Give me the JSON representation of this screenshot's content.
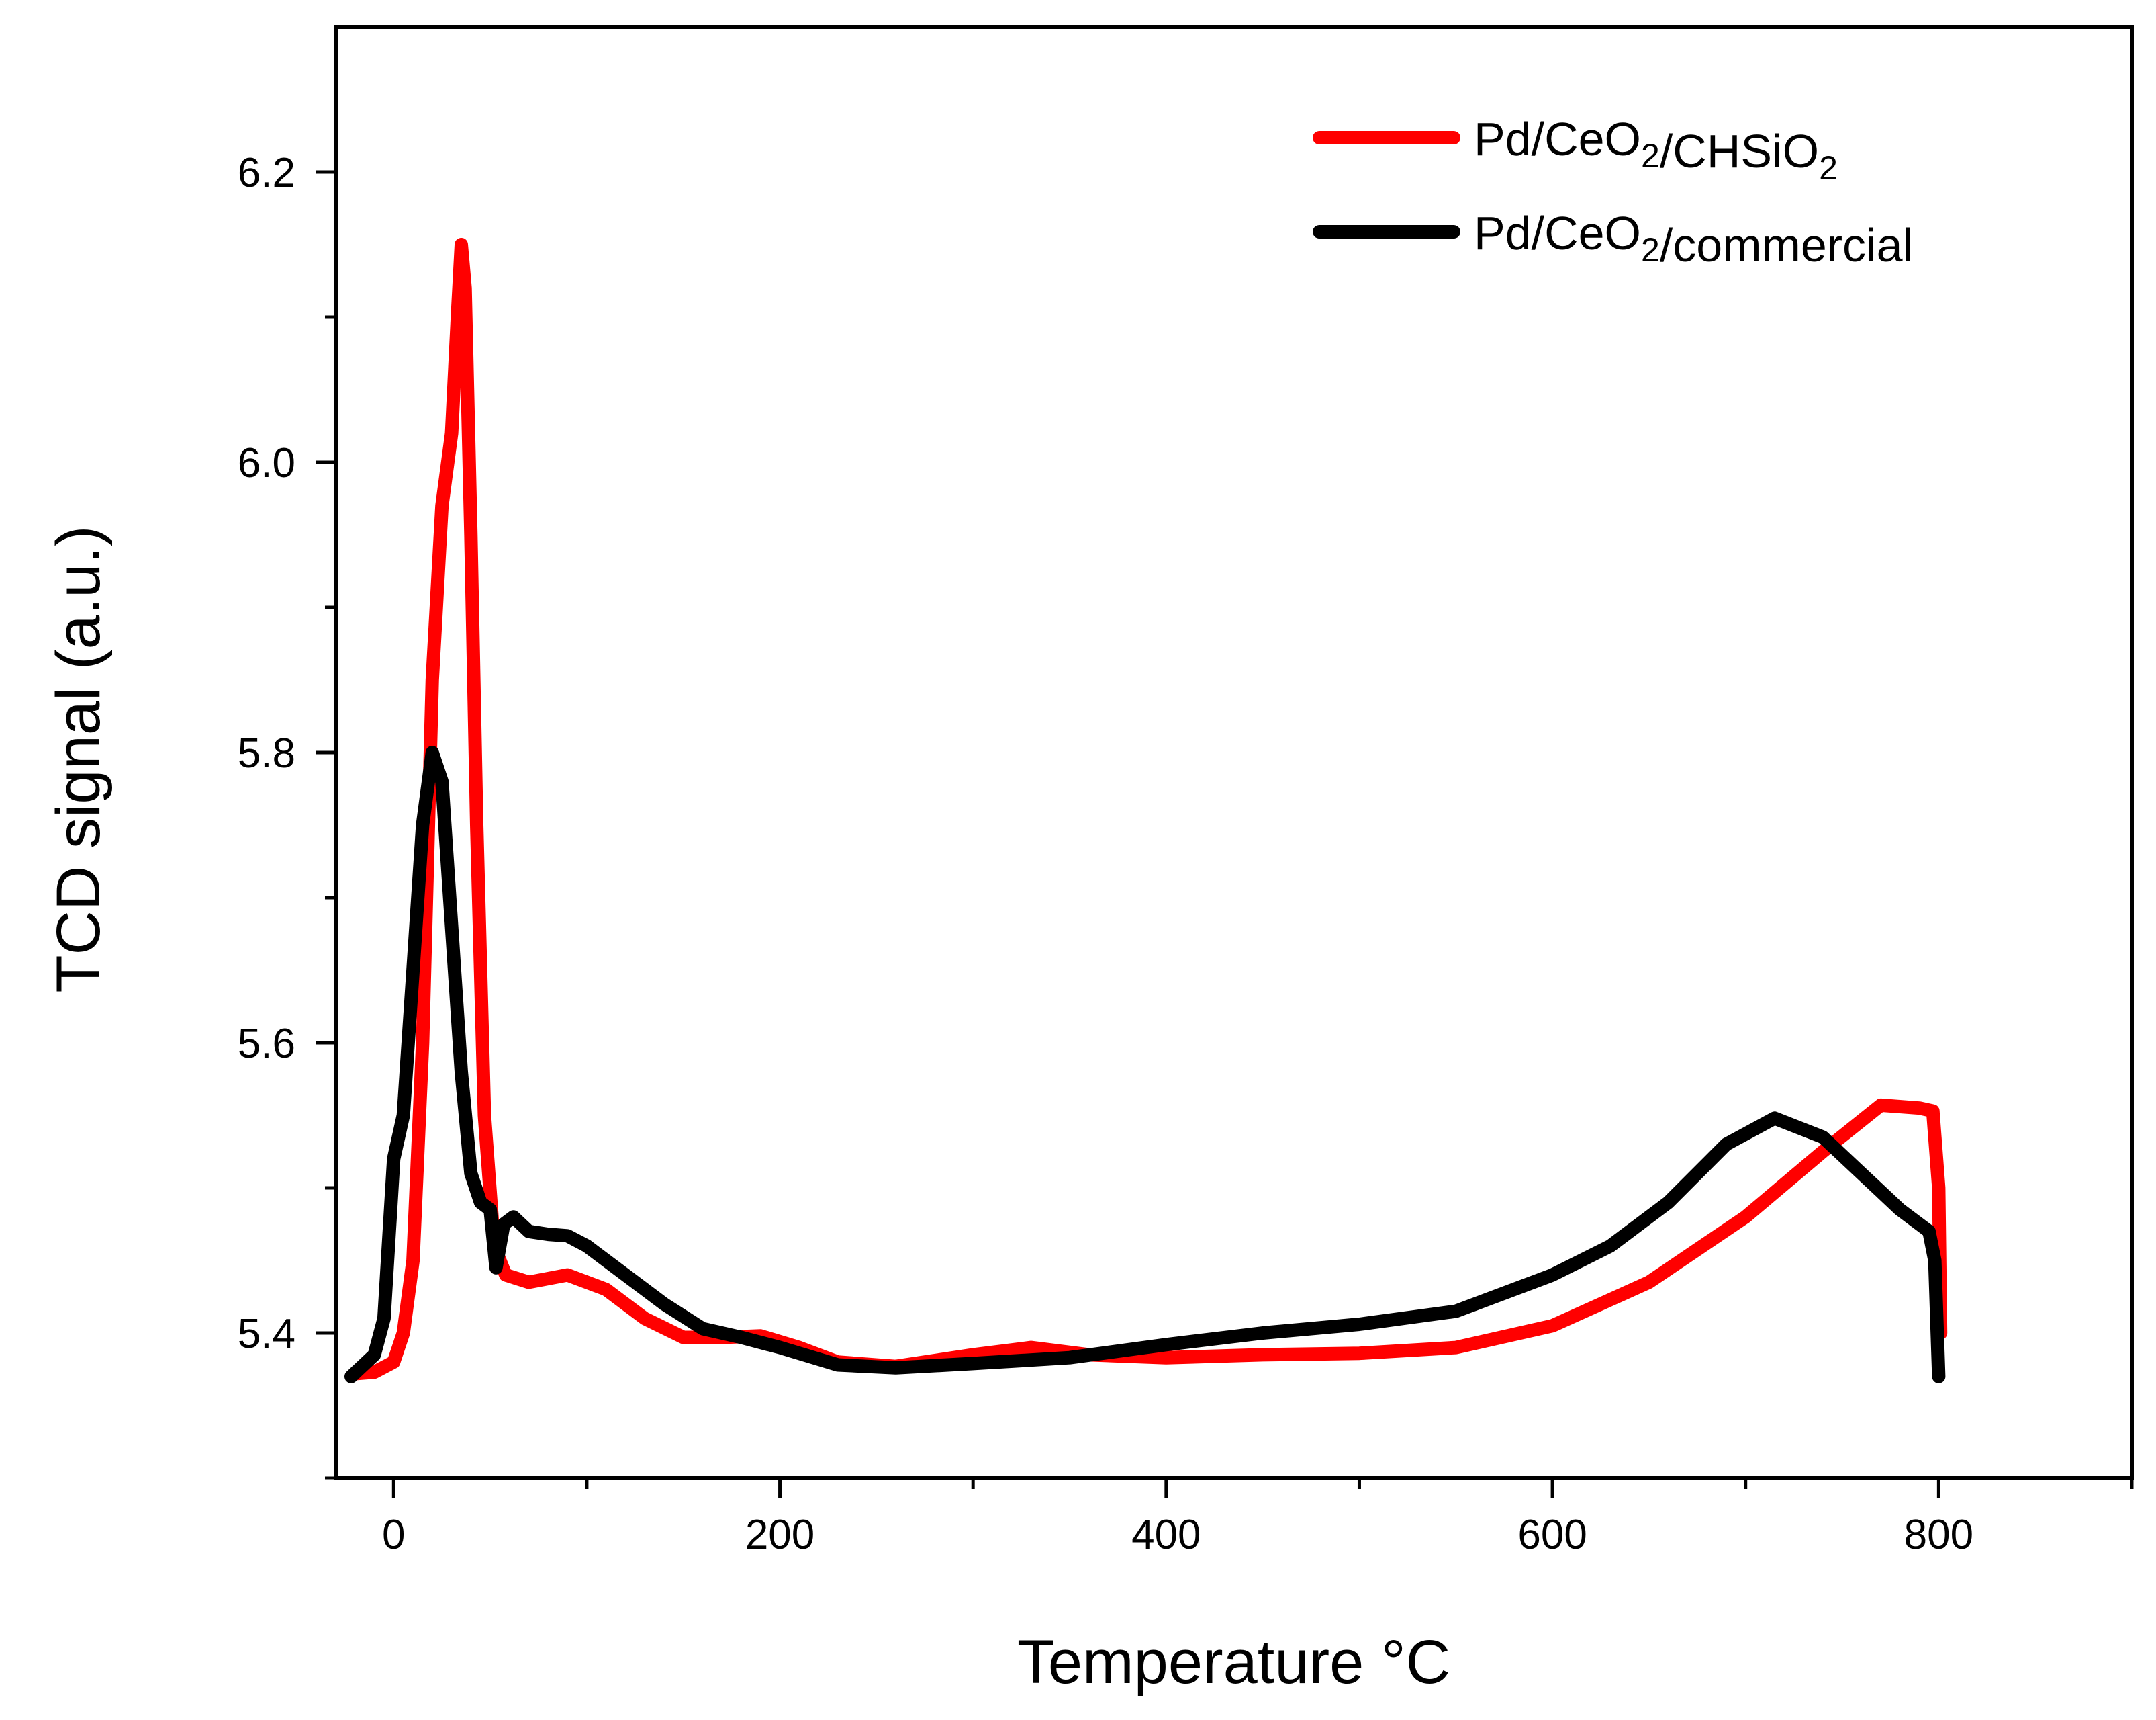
{
  "chart_data": {
    "type": "line",
    "xlabel": "Temperature °C",
    "ylabel": "TCD signal (a.u.)",
    "xlim": [
      -30,
      900
    ],
    "ylim": [
      5.3,
      6.3
    ],
    "x_ticks": [
      0,
      200,
      400,
      600,
      800
    ],
    "y_ticks": [
      5.4,
      5.6,
      5.8,
      6.0,
      6.2
    ],
    "x_tick_labels": [
      "0",
      "200",
      "400",
      "600",
      "800"
    ],
    "y_tick_labels": [
      "5.4",
      "5.6",
      "5.8",
      "6.0",
      "6.2"
    ],
    "legend_position": "top-right",
    "series": [
      {
        "name": "Pd/CeO2/CHSiO2",
        "legend": {
          "prefix": "Pd/CeO",
          "sub1": "2",
          "middle": "/CHSiO",
          "sub2": "2",
          "suffix": ""
        },
        "color": "#ff0000",
        "points": [
          [
            -20,
            5.372
          ],
          [
            -10,
            5.373
          ],
          [
            0,
            5.38
          ],
          [
            5,
            5.4
          ],
          [
            10,
            5.45
          ],
          [
            15,
            5.6
          ],
          [
            20,
            5.85
          ],
          [
            25,
            5.97
          ],
          [
            30,
            6.02
          ],
          [
            33,
            6.1
          ],
          [
            35,
            6.15
          ],
          [
            37,
            6.12
          ],
          [
            40,
            5.95
          ],
          [
            43,
            5.75
          ],
          [
            47,
            5.55
          ],
          [
            52,
            5.46
          ],
          [
            58,
            5.44
          ],
          [
            70,
            5.435
          ],
          [
            90,
            5.44
          ],
          [
            110,
            5.43
          ],
          [
            130,
            5.41
          ],
          [
            150,
            5.397
          ],
          [
            170,
            5.397
          ],
          [
            190,
            5.398
          ],
          [
            210,
            5.39
          ],
          [
            230,
            5.38
          ],
          [
            260,
            5.377
          ],
          [
            300,
            5.385
          ],
          [
            330,
            5.39
          ],
          [
            360,
            5.385
          ],
          [
            400,
            5.383
          ],
          [
            450,
            5.385
          ],
          [
            500,
            5.386
          ],
          [
            550,
            5.39
          ],
          [
            600,
            5.405
          ],
          [
            650,
            5.435
          ],
          [
            700,
            5.48
          ],
          [
            740,
            5.525
          ],
          [
            770,
            5.557
          ],
          [
            790,
            5.555
          ],
          [
            797,
            5.553
          ],
          [
            800,
            5.5
          ],
          [
            801,
            5.4
          ]
        ]
      },
      {
        "name": "Pd/CeO2/commercial",
        "legend": {
          "prefix": "Pd/CeO",
          "sub1": "2",
          "middle": "/commercial",
          "sub2": "",
          "suffix": ""
        },
        "color": "#000000",
        "points": [
          [
            -22,
            5.37
          ],
          [
            -18,
            5.375
          ],
          [
            -10,
            5.385
          ],
          [
            -5,
            5.41
          ],
          [
            0,
            5.52
          ],
          [
            5,
            5.55
          ],
          [
            10,
            5.65
          ],
          [
            15,
            5.75
          ],
          [
            20,
            5.8
          ],
          [
            25,
            5.78
          ],
          [
            30,
            5.68
          ],
          [
            35,
            5.58
          ],
          [
            40,
            5.51
          ],
          [
            45,
            5.49
          ],
          [
            50,
            5.485
          ],
          [
            53,
            5.445
          ],
          [
            57,
            5.475
          ],
          [
            62,
            5.48
          ],
          [
            70,
            5.47
          ],
          [
            80,
            5.468
          ],
          [
            90,
            5.467
          ],
          [
            100,
            5.46
          ],
          [
            120,
            5.44
          ],
          [
            140,
            5.42
          ],
          [
            160,
            5.403
          ],
          [
            180,
            5.397
          ],
          [
            200,
            5.39
          ],
          [
            230,
            5.378
          ],
          [
            260,
            5.376
          ],
          [
            300,
            5.379
          ],
          [
            350,
            5.383
          ],
          [
            400,
            5.392
          ],
          [
            450,
            5.4
          ],
          [
            500,
            5.406
          ],
          [
            550,
            5.415
          ],
          [
            600,
            5.44
          ],
          [
            630,
            5.46
          ],
          [
            660,
            5.49
          ],
          [
            690,
            5.53
          ],
          [
            715,
            5.548
          ],
          [
            740,
            5.535
          ],
          [
            760,
            5.51
          ],
          [
            780,
            5.485
          ],
          [
            795,
            5.47
          ],
          [
            798,
            5.45
          ],
          [
            800,
            5.37
          ]
        ]
      }
    ]
  }
}
